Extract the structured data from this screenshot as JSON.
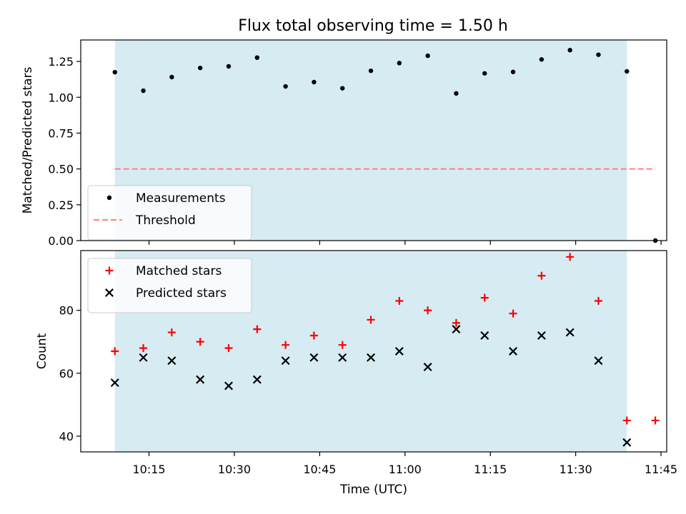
{
  "title": "Flux total observing time = 1.50 h",
  "chart_data": [
    {
      "type": "scatter",
      "panel": "top",
      "ylabel": "Matched/Predicted stars",
      "ylim": [
        0,
        1.4
      ],
      "xlim": [
        "10:03",
        "11:46"
      ],
      "yticks": [
        0.0,
        0.25,
        0.5,
        0.75,
        1.0,
        1.25
      ],
      "ytick_labels": [
        "0.00",
        "0.25",
        "0.50",
        "0.75",
        "1.00",
        "1.25"
      ],
      "shaded_span": [
        "10:09",
        "11:39"
      ],
      "shade_color": "#add8e6",
      "series": [
        {
          "name": "Measurements",
          "color": "#000000",
          "marker": "dot",
          "x": [
            "10:09",
            "10:14",
            "10:19",
            "10:24",
            "10:29",
            "10:34",
            "10:39",
            "10:44",
            "10:49",
            "10:54",
            "10:59",
            "11:04",
            "11:09",
            "11:14",
            "11:19",
            "11:24",
            "11:29",
            "11:34",
            "11:39",
            "11:44"
          ],
          "y": [
            1.175,
            1.046,
            1.141,
            1.205,
            1.216,
            1.277,
            1.076,
            1.106,
            1.063,
            1.185,
            1.239,
            1.29,
            1.027,
            1.167,
            1.177,
            1.264,
            1.329,
            1.297,
            1.181,
            0.0
          ]
        },
        {
          "name": "Threshold",
          "color": "#ff7f7f",
          "style": "dashed",
          "x": [
            "10:09",
            "11:44"
          ],
          "y": [
            0.5,
            0.5
          ]
        }
      ],
      "legend_position": "lower-left",
      "grid": false
    },
    {
      "type": "scatter",
      "panel": "bottom",
      "ylabel": "Count",
      "xlabel": "Time (UTC)",
      "ylim": [
        35,
        99
      ],
      "xlim": [
        "10:03",
        "11:46"
      ],
      "yticks": [
        40,
        60,
        80
      ],
      "xticks": [
        "10:15",
        "10:30",
        "10:45",
        "11:00",
        "11:15",
        "11:30",
        "11:45"
      ],
      "shaded_span": [
        "10:09",
        "11:39"
      ],
      "shade_color": "#add8e6",
      "series": [
        {
          "name": "Matched stars",
          "color": "#ff0000",
          "marker": "plus",
          "x": [
            "10:09",
            "10:14",
            "10:19",
            "10:24",
            "10:29",
            "10:34",
            "10:39",
            "10:44",
            "10:49",
            "10:54",
            "10:59",
            "11:04",
            "11:09",
            "11:14",
            "11:19",
            "11:24",
            "11:29",
            "11:34",
            "11:39",
            "11:44"
          ],
          "y": [
            67,
            68,
            73,
            70,
            68,
            74,
            69,
            72,
            69,
            77,
            83,
            80,
            76,
            84,
            79,
            91,
            97,
            83,
            45,
            45
          ]
        },
        {
          "name": "Predicted stars",
          "color": "#000000",
          "marker": "x",
          "x": [
            "10:09",
            "10:14",
            "10:19",
            "10:24",
            "10:29",
            "10:34",
            "10:39",
            "10:44",
            "10:49",
            "10:54",
            "10:59",
            "11:04",
            "11:09",
            "11:14",
            "11:19",
            "11:24",
            "11:29",
            "11:34",
            "11:39"
          ],
          "y": [
            57,
            65,
            64,
            58,
            56,
            58,
            64,
            65,
            65,
            65,
            67,
            62,
            74,
            72,
            67,
            72,
            73,
            64,
            38
          ]
        }
      ],
      "legend_position": "top-left",
      "grid": false
    }
  ]
}
